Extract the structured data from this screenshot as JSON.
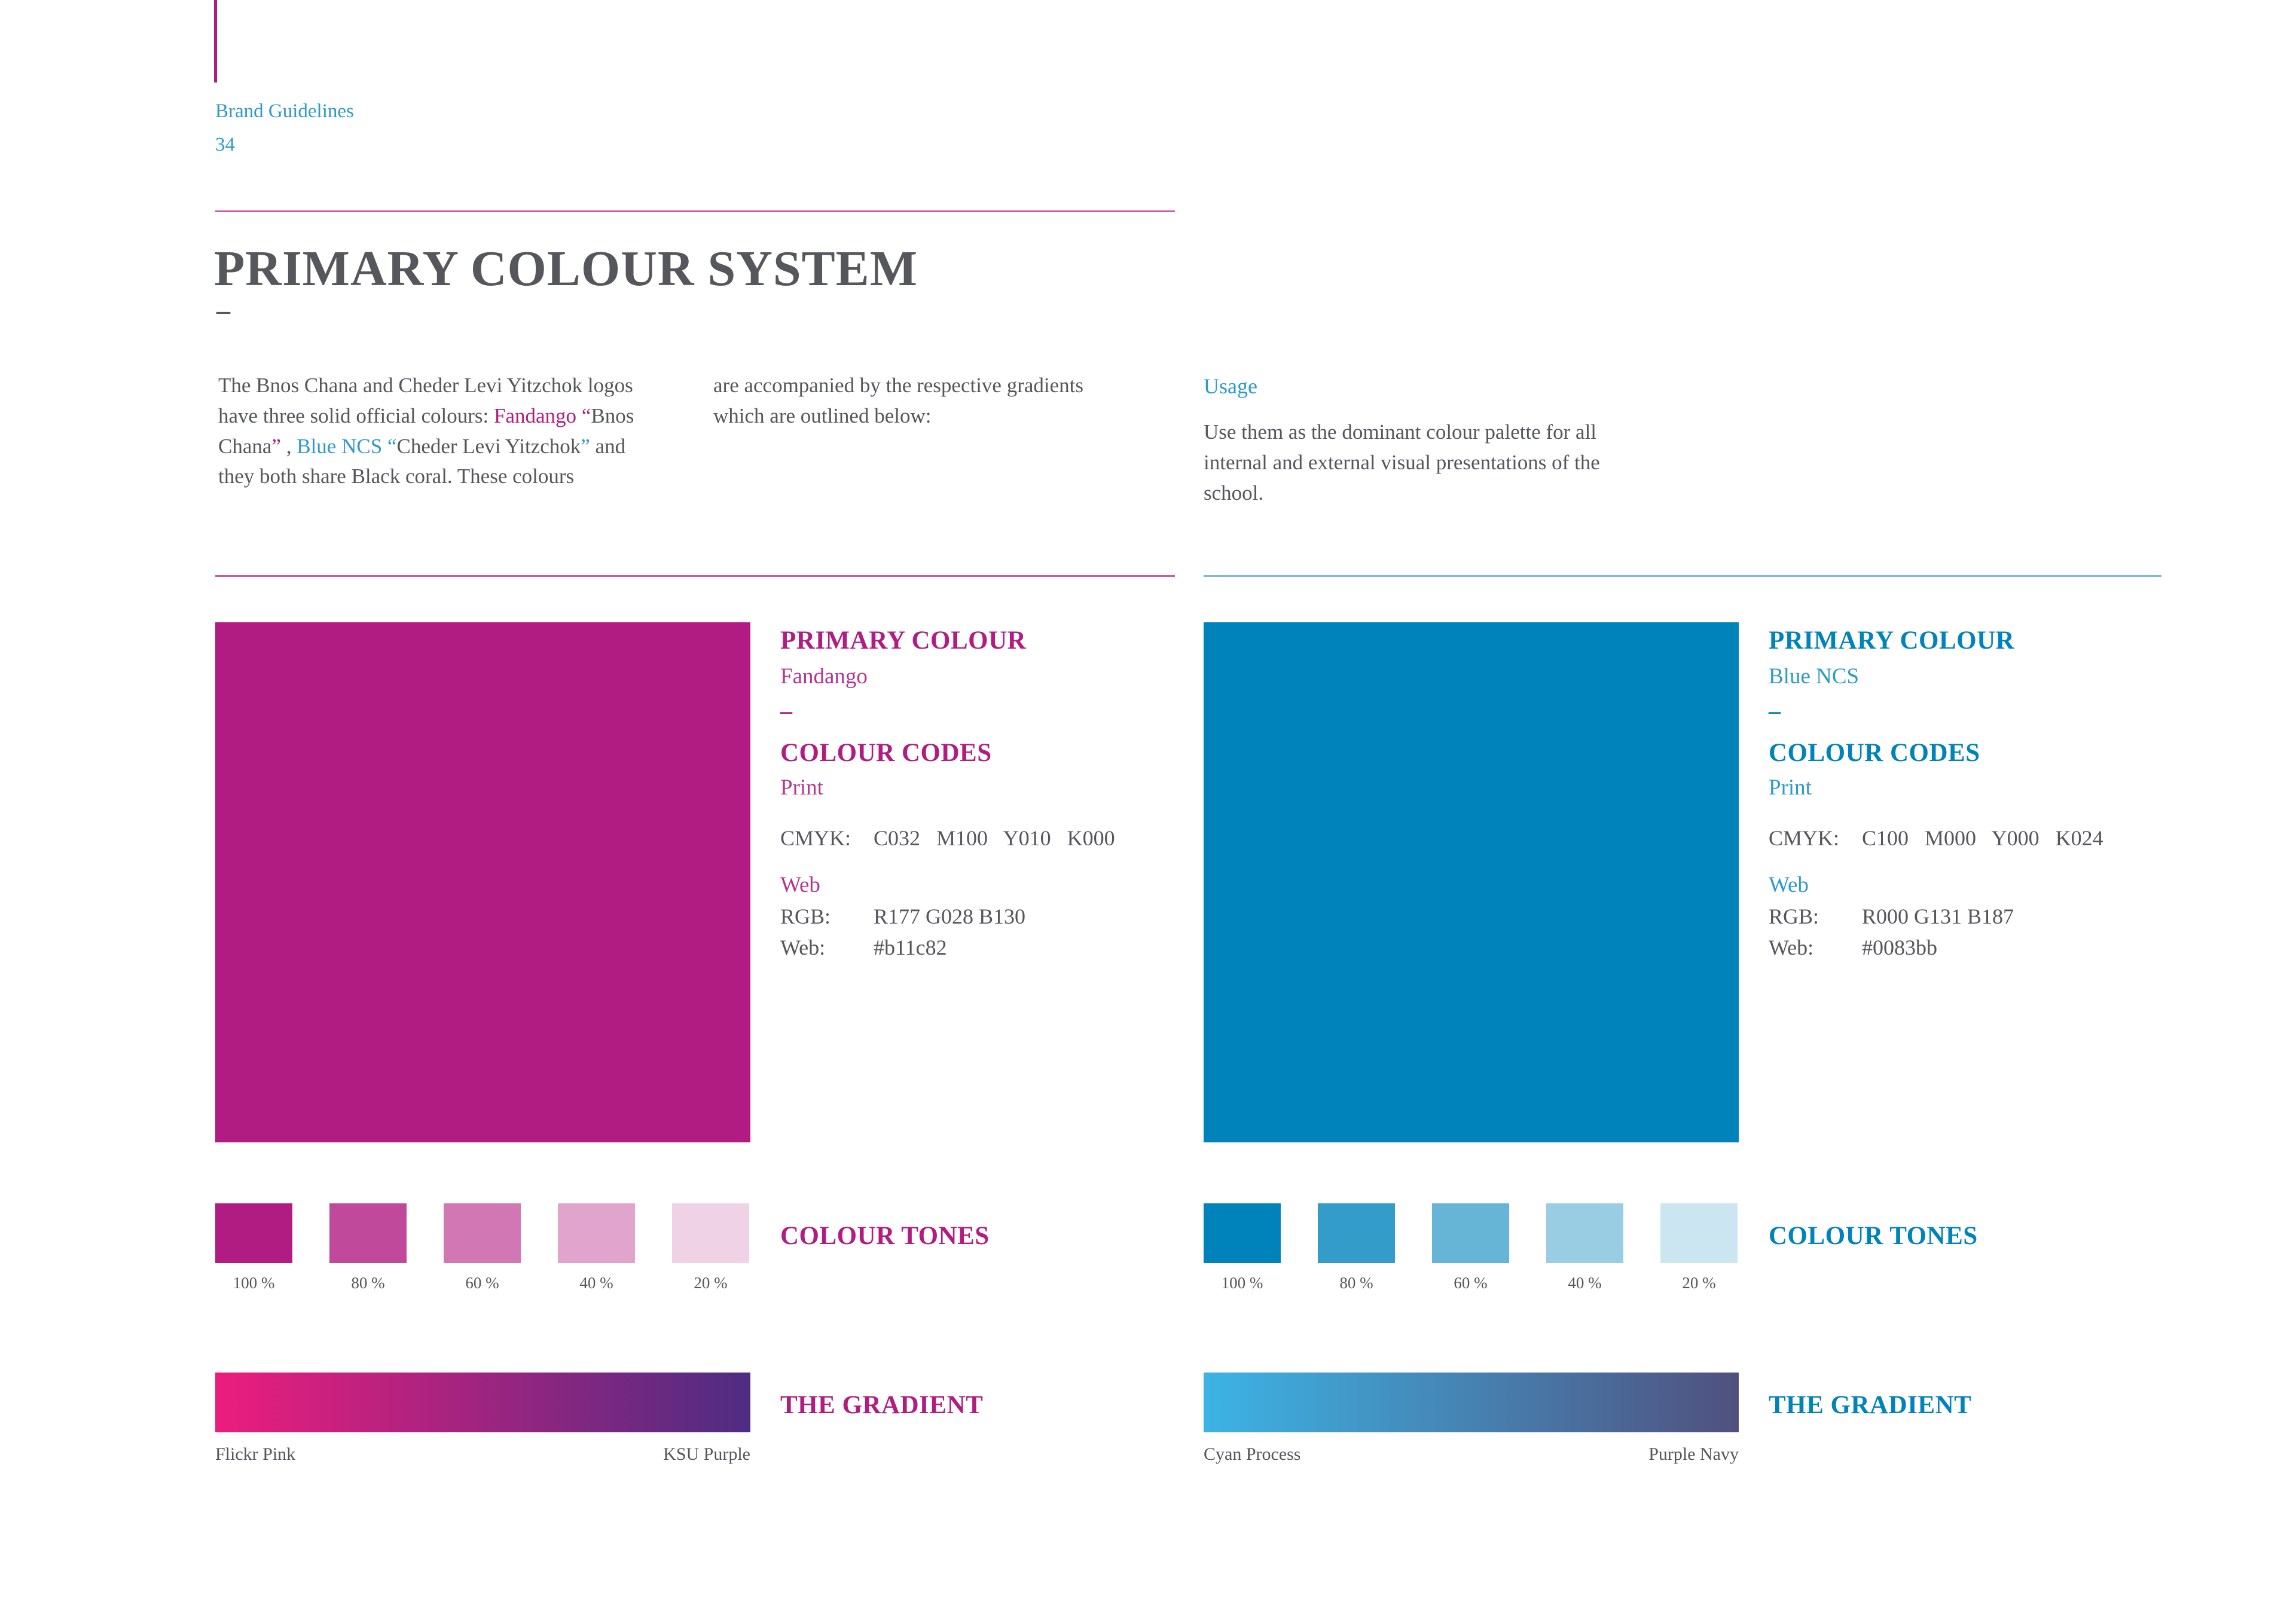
{
  "page": {
    "breadcrumb": "Brand Guidelines",
    "page_number": "34",
    "title": "PRIMARY COLOUR SYSTEM",
    "title_dash": "–"
  },
  "colors": {
    "pink": "#b11c82",
    "pink_light": "#b5348f",
    "blue": "#0083bb",
    "blue_light": "#2d9ac9",
    "text": "#54565a",
    "title": "#55575c",
    "rule_pink": "#c45ca6",
    "rule_blue": "#7fb9d6"
  },
  "intro": {
    "col1_segments": [
      {
        "t": "The Bnos Chana and Cheder Levi Yitzchok logos have three solid official colours: ",
        "c": "plain"
      },
      {
        "t": "Fandango",
        "c": "pink"
      },
      {
        "t": " ",
        "c": "plain"
      },
      {
        "t": "“",
        "c": "pink"
      },
      {
        "t": "Bnos Chana",
        "c": "plain"
      },
      {
        "t": "”",
        "c": "pink"
      },
      {
        "t": " , ",
        "c": "plain"
      },
      {
        "t": "Blue NCS",
        "c": "blue"
      },
      {
        "t": " ",
        "c": "plain"
      },
      {
        "t": "“",
        "c": "blue"
      },
      {
        "t": "Cheder Levi Yitzchok",
        "c": "plain"
      },
      {
        "t": "”",
        "c": "blue"
      },
      {
        "t": " and they both share Black coral. These colours",
        "c": "plain"
      }
    ],
    "col2": "are accompanied by the respective gradients which are outlined below:",
    "usage_title": "Usage",
    "usage_body": "Use them as the dominant colour palette for all internal and external visual presentations of the school."
  },
  "panels": [
    {
      "id": "fandango",
      "primary_colour_label": "PRIMARY COLOUR",
      "name": "Fandango",
      "dash": "–",
      "colour_codes_label": "COLOUR CODES",
      "print_label": "Print",
      "cmyk_label": "CMYK:",
      "cmyk_value": "C032   M100   Y010   K000",
      "web_section_label": "Web",
      "rgb_label": "RGB:",
      "rgb_value": "R177 G028 B130",
      "web_label": "Web:",
      "web_value": "#b11c82",
      "swatch_hex": "#b11c82",
      "tones_label": "COLOUR TONES",
      "tones": [
        {
          "label": "100 %",
          "opacity": 1
        },
        {
          "label": "80 %",
          "opacity": 0.8
        },
        {
          "label": "60 %",
          "opacity": 0.6
        },
        {
          "label": "40 %",
          "opacity": 0.4
        },
        {
          "label": "20 %",
          "opacity": 0.2
        }
      ],
      "gradient_label": "THE GRADIENT",
      "gradient": {
        "from": "#ec1d7d",
        "to": "#4e2c82",
        "from_label": "Flickr Pink",
        "to_label": "KSU Purple"
      }
    },
    {
      "id": "blue-ncs",
      "primary_colour_label": "PRIMARY COLOUR",
      "name": "Blue NCS",
      "dash": "–",
      "colour_codes_label": "COLOUR CODES",
      "print_label": "Print",
      "cmyk_label": "CMYK:",
      "cmyk_value": "C100   M000   Y000   K024",
      "web_section_label": "Web",
      "rgb_label": "RGB:",
      "rgb_value": "R000 G131 B187",
      "web_label": "Web:",
      "web_value": "#0083bb",
      "swatch_hex": "#0083bb",
      "tones_label": "COLOUR TONES",
      "tones": [
        {
          "label": "100 %",
          "opacity": 1
        },
        {
          "label": "80 %",
          "opacity": 0.8
        },
        {
          "label": "60 %",
          "opacity": 0.6
        },
        {
          "label": "40 %",
          "opacity": 0.4
        },
        {
          "label": "20 %",
          "opacity": 0.2
        }
      ],
      "gradient_label": "THE GRADIENT",
      "gradient": {
        "from": "#3cb4e5",
        "to": "#50507e",
        "from_label": "Cyan Process",
        "to_label": "Purple Navy"
      }
    }
  ]
}
